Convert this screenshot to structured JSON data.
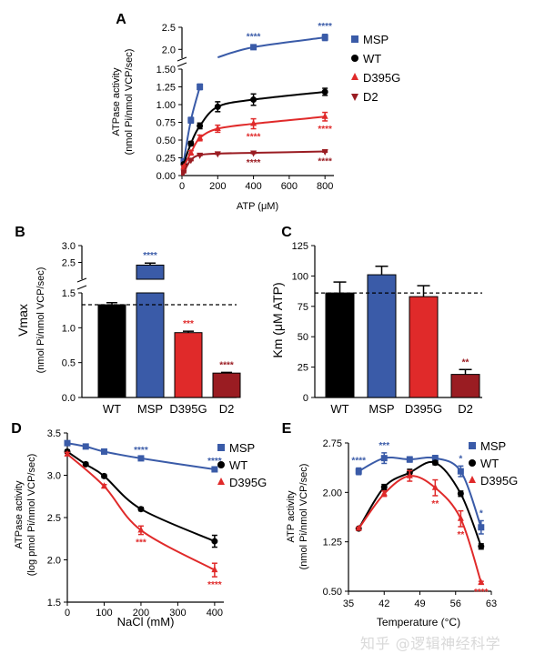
{
  "watermark": "知乎 @逻辑神经科学",
  "colors": {
    "msp": "#3a5ba8",
    "wt": "#000000",
    "d395g": "#e02a2a",
    "d2": "#9a1c22",
    "star_msp": "#3a5ba8",
    "star_d395g": "#e02a2a",
    "star_d2": "#9a1c22"
  },
  "chart_data": [
    {
      "panel": "A",
      "type": "line",
      "xlabel": "ATP (μM)",
      "ylabel_lines": [
        "ATPase activity",
        "(nmol Pi/nmol VCP/sec)"
      ],
      "xlim": [
        0,
        850
      ],
      "ylim_lower": [
        0,
        1.5
      ],
      "ylim_upper": [
        1.8,
        2.5
      ],
      "xticks": [
        0,
        200,
        400,
        600,
        800
      ],
      "yticks_lower": [
        "0.00",
        "0.25",
        "0.50",
        "0.75",
        "1.00",
        "1.25",
        "1.50"
      ],
      "yticks_upper": [
        "2.0",
        "2.5"
      ],
      "legend": [
        "MSP",
        "WT",
        "D395G",
        "D2"
      ],
      "series": [
        {
          "name": "MSP",
          "x": [
            10,
            50,
            100,
            400,
            800
          ],
          "y": [
            0.2,
            0.78,
            1.25,
            2.05,
            2.27
          ],
          "err": [
            0.02,
            0.04,
            0.04,
            0.05,
            0.07
          ]
        },
        {
          "name": "WT",
          "x": [
            10,
            50,
            100,
            200,
            400,
            800
          ],
          "y": [
            0.16,
            0.45,
            0.7,
            0.97,
            1.07,
            1.18
          ],
          "err": [
            0.02,
            0.03,
            0.04,
            0.07,
            0.08,
            0.05
          ]
        },
        {
          "name": "D395G",
          "x": [
            10,
            50,
            100,
            200,
            400,
            800
          ],
          "y": [
            0.12,
            0.32,
            0.53,
            0.66,
            0.73,
            0.83
          ],
          "err": [
            0.02,
            0.03,
            0.04,
            0.05,
            0.07,
            0.06
          ]
        },
        {
          "name": "D2",
          "x": [
            10,
            50,
            100,
            200,
            400,
            800
          ],
          "y": [
            0.05,
            0.22,
            0.29,
            0.31,
            0.32,
            0.34
          ],
          "err": [
            0.01,
            0.01,
            0.01,
            0.01,
            0.01,
            0.01
          ]
        }
      ],
      "significance": [
        {
          "series": "MSP",
          "x": 400,
          "text": "****"
        },
        {
          "series": "MSP",
          "x": 800,
          "text": "****"
        },
        {
          "series": "D395G",
          "x": 400,
          "text": "****"
        },
        {
          "series": "D395G",
          "x": 800,
          "text": "****"
        },
        {
          "series": "D2",
          "x": 400,
          "text": "****"
        },
        {
          "series": "D2",
          "x": 800,
          "text": "****"
        }
      ]
    },
    {
      "panel": "B",
      "type": "bar",
      "ylabel": "Vmax",
      "ylabel_sub": "(nmol Pi/nmol VCP/sec)",
      "categories": [
        "WT",
        "MSP",
        "D395G",
        "D2"
      ],
      "values": [
        1.33,
        2.42,
        0.93,
        0.35
      ],
      "err": [
        0.03,
        0.06,
        0.02,
        0.01
      ],
      "ylim_lower": [
        0,
        1.5
      ],
      "ylim_upper": [
        2.0,
        3.0
      ],
      "yticks_lower": [
        "0.0",
        "0.5",
        "1.0",
        "1.5"
      ],
      "yticks_upper": [
        "2.5",
        "3.0"
      ],
      "reference_line": 1.33,
      "significance": [
        "",
        "****",
        "***",
        "****"
      ]
    },
    {
      "panel": "C",
      "type": "bar",
      "ylabel": "Km (μM ATP)",
      "categories": [
        "WT",
        "MSP",
        "D395G",
        "D2"
      ],
      "values": [
        86,
        101,
        83,
        19
      ],
      "err": [
        9,
        7,
        9,
        4
      ],
      "ylim": [
        0,
        125
      ],
      "yticks": [
        "0",
        "25",
        "50",
        "75",
        "100",
        "125"
      ],
      "reference_line": 86,
      "significance": [
        "",
        "",
        "",
        "**"
      ]
    },
    {
      "panel": "D",
      "type": "line",
      "xlabel": "NaCl (mM)",
      "ylabel_lines": [
        "ATPase activity",
        "(log pmol Pi/nmol VCP/sec)"
      ],
      "xlim": [
        0,
        425
      ],
      "ylim": [
        1.5,
        3.5
      ],
      "xticks": [
        0,
        100,
        200,
        300,
        400
      ],
      "yticks": [
        "1.5",
        "2.0",
        "2.5",
        "3.0",
        "3.5"
      ],
      "legend": [
        "MSP",
        "WT",
        "D395G"
      ],
      "series": [
        {
          "name": "MSP",
          "x": [
            0,
            50,
            100,
            200,
            400
          ],
          "y": [
            3.38,
            3.34,
            3.28,
            3.2,
            3.07
          ],
          "err": [
            0.02,
            0.02,
            0.02,
            0.02,
            0.02
          ]
        },
        {
          "name": "WT",
          "x": [
            0,
            50,
            100,
            200,
            400
          ],
          "y": [
            3.28,
            3.13,
            2.99,
            2.6,
            2.22
          ],
          "err": [
            0.02,
            0.02,
            0.02,
            0.02,
            0.07
          ]
        },
        {
          "name": "D395G",
          "x": [
            0,
            100,
            200,
            400
          ],
          "y": [
            3.25,
            2.87,
            2.35,
            1.88
          ],
          "err": [
            0.02,
            0.02,
            0.05,
            0.08
          ]
        }
      ],
      "significance": [
        {
          "series": "MSP",
          "x": 200,
          "text": "****"
        },
        {
          "series": "MSP",
          "x": 400,
          "text": "****"
        },
        {
          "series": "D395G",
          "x": 200,
          "text": "***"
        },
        {
          "series": "D395G",
          "x": 400,
          "text": "****"
        }
      ]
    },
    {
      "panel": "E",
      "type": "line",
      "xlabel": "Temperature (°C)",
      "ylabel_lines": [
        "ATP activity",
        "(nmol Pi/nmol VCP/sec)"
      ],
      "xlim": [
        35,
        63
      ],
      "ylim": [
        0.5,
        2.75
      ],
      "xticks": [
        35,
        42,
        49,
        56,
        63
      ],
      "yticks": [
        "0.50",
        "1.25",
        "2.00",
        "2.75"
      ],
      "legend": [
        "MSP",
        "WT",
        "D395G"
      ],
      "series": [
        {
          "name": "MSP",
          "x": [
            37,
            42,
            47,
            52,
            57,
            61
          ],
          "y": [
            2.32,
            2.52,
            2.5,
            2.52,
            2.32,
            1.47
          ],
          "err": [
            0.05,
            0.08,
            0.04,
            0.04,
            0.08,
            0.1
          ]
        },
        {
          "name": "WT",
          "x": [
            37,
            42,
            47,
            52,
            57,
            61
          ],
          "y": [
            1.45,
            2.08,
            2.3,
            2.45,
            1.98,
            1.18
          ],
          "err": [
            0.02,
            0.04,
            0.05,
            0.03,
            0.04,
            0.04
          ]
        },
        {
          "name": "D395G",
          "x": [
            37,
            42,
            47,
            52,
            57,
            61
          ],
          "y": [
            1.45,
            1.98,
            2.25,
            2.07,
            1.6,
            0.63
          ],
          "err": [
            0.02,
            0.04,
            0.08,
            0.12,
            0.12,
            0.02
          ]
        }
      ],
      "significance": [
        {
          "series": "MSP",
          "x": 37,
          "text": "****"
        },
        {
          "series": "MSP",
          "x": 42,
          "text": "***"
        },
        {
          "series": "MSP",
          "x": 57,
          "text": "*"
        },
        {
          "series": "MSP",
          "x": 61,
          "text": "*"
        },
        {
          "series": "D395G",
          "x": 52,
          "text": "**"
        },
        {
          "series": "D395G",
          "x": 57,
          "text": "**"
        },
        {
          "series": "D395G",
          "x": 61,
          "text": "****"
        }
      ]
    }
  ]
}
